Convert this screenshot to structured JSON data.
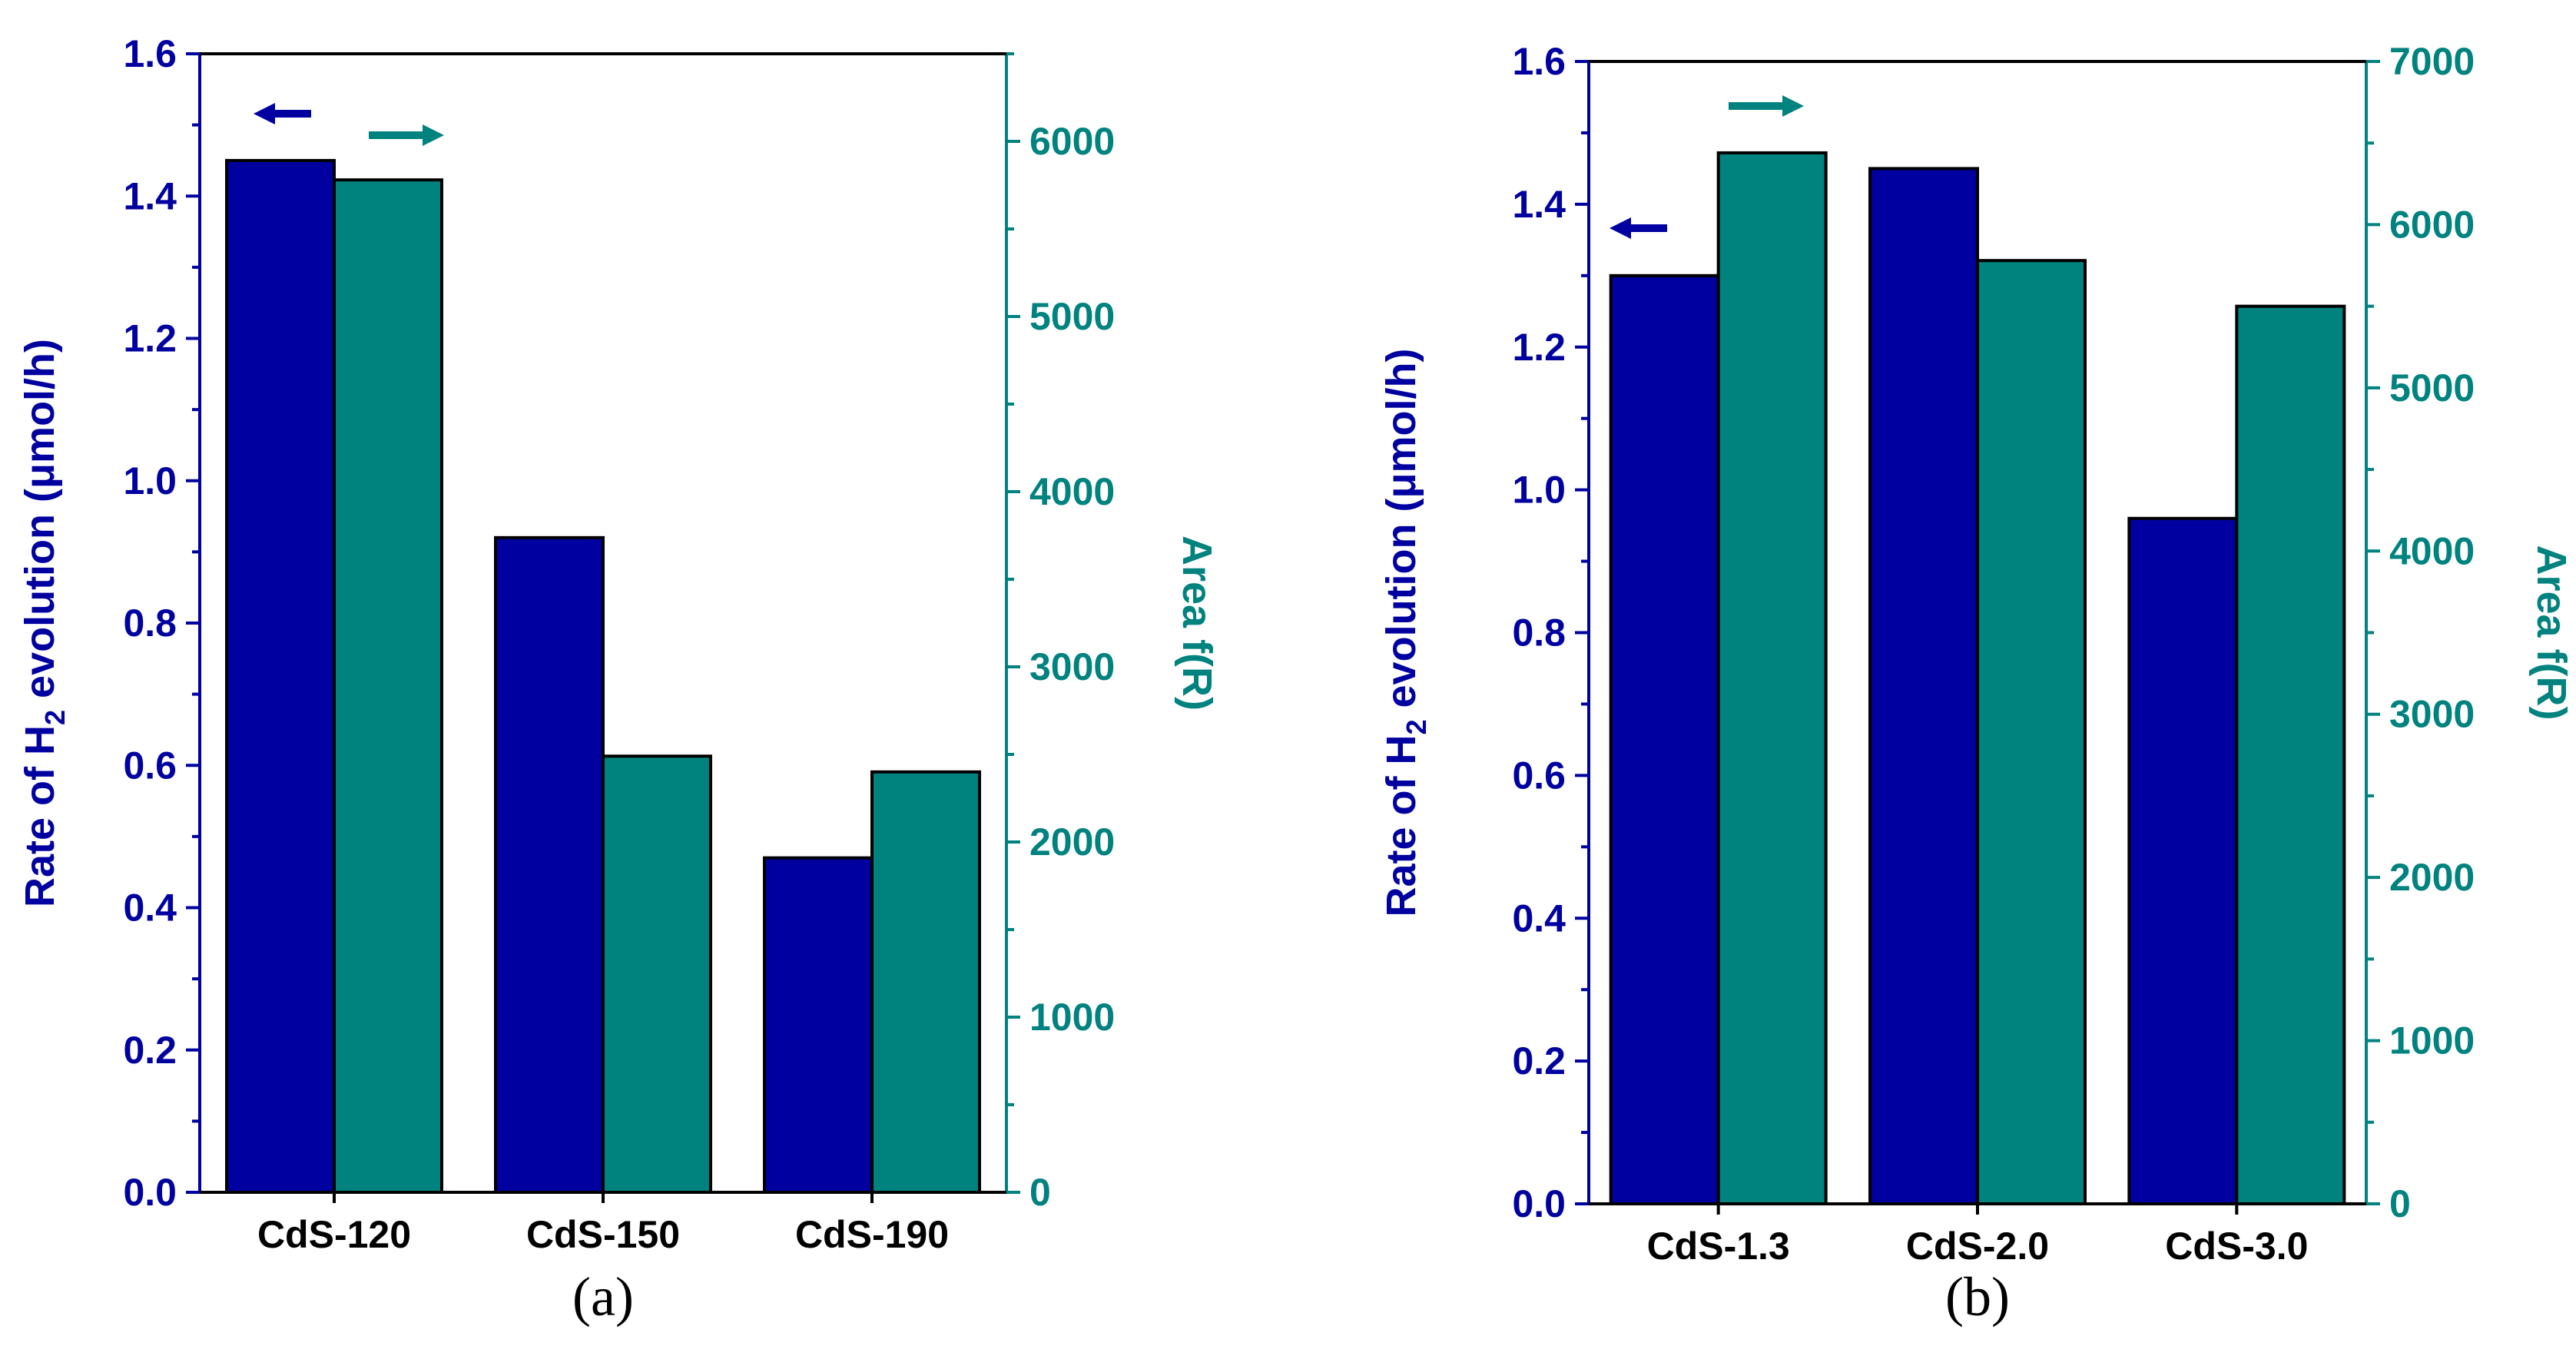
{
  "colors": {
    "rate": "#0000a0",
    "area": "#00827f",
    "axis": "#000000",
    "background": "#ffffff"
  },
  "chart_data": [
    {
      "type": "bar",
      "panel_label": "(a)",
      "categories": [
        "CdS-120",
        "CdS-150",
        "CdS-190"
      ],
      "series": [
        {
          "name": "Rate of H2 evolution",
          "axis": "left",
          "values": [
            1.45,
            0.92,
            0.47
          ]
        },
        {
          "name": "Area f(R)",
          "axis": "right",
          "values": [
            5780,
            2490,
            2400
          ]
        }
      ],
      "y_left": {
        "label_main": "Rate of H",
        "label_sub": "2",
        "label_rest": " evolution (μmol/h)",
        "min": 0,
        "max": 1.6,
        "ticks": [
          "0.0",
          "0.2",
          "0.4",
          "0.6",
          "0.8",
          "1.0",
          "1.2",
          "1.4",
          "1.6"
        ]
      },
      "y_right": {
        "label": "Area f(R)",
        "min": 0,
        "max": 6500,
        "ticks": [
          "0",
          "1000",
          "2000",
          "3000",
          "4000",
          "5000",
          "6000"
        ]
      },
      "arrows": {
        "left": "top-left",
        "right": "top-left"
      }
    },
    {
      "type": "bar",
      "panel_label": "(b)",
      "categories": [
        "CdS-1.3",
        "CdS-2.0",
        "CdS-3.0"
      ],
      "series": [
        {
          "name": "Rate of H2 evolution",
          "axis": "left",
          "values": [
            1.3,
            1.45,
            0.96
          ]
        },
        {
          "name": "Area f(R)",
          "axis": "right",
          "values": [
            6440,
            5780,
            5500
          ]
        }
      ],
      "y_left": {
        "label_main": "Rate of H",
        "label_sub": "2",
        "label_rest": " evolution (μmol/h)",
        "min": 0,
        "max": 1.6,
        "ticks": [
          "0.0",
          "0.2",
          "0.4",
          "0.6",
          "0.8",
          "1.0",
          "1.2",
          "1.4",
          "1.6"
        ]
      },
      "y_right": {
        "label": "Area f(R)",
        "min": 0,
        "max": 7000,
        "ticks": [
          "0",
          "1000",
          "2000",
          "3000",
          "4000",
          "5000",
          "6000",
          "7000"
        ]
      },
      "arrows": {
        "left": "top-left",
        "right": "top-left"
      }
    }
  ]
}
